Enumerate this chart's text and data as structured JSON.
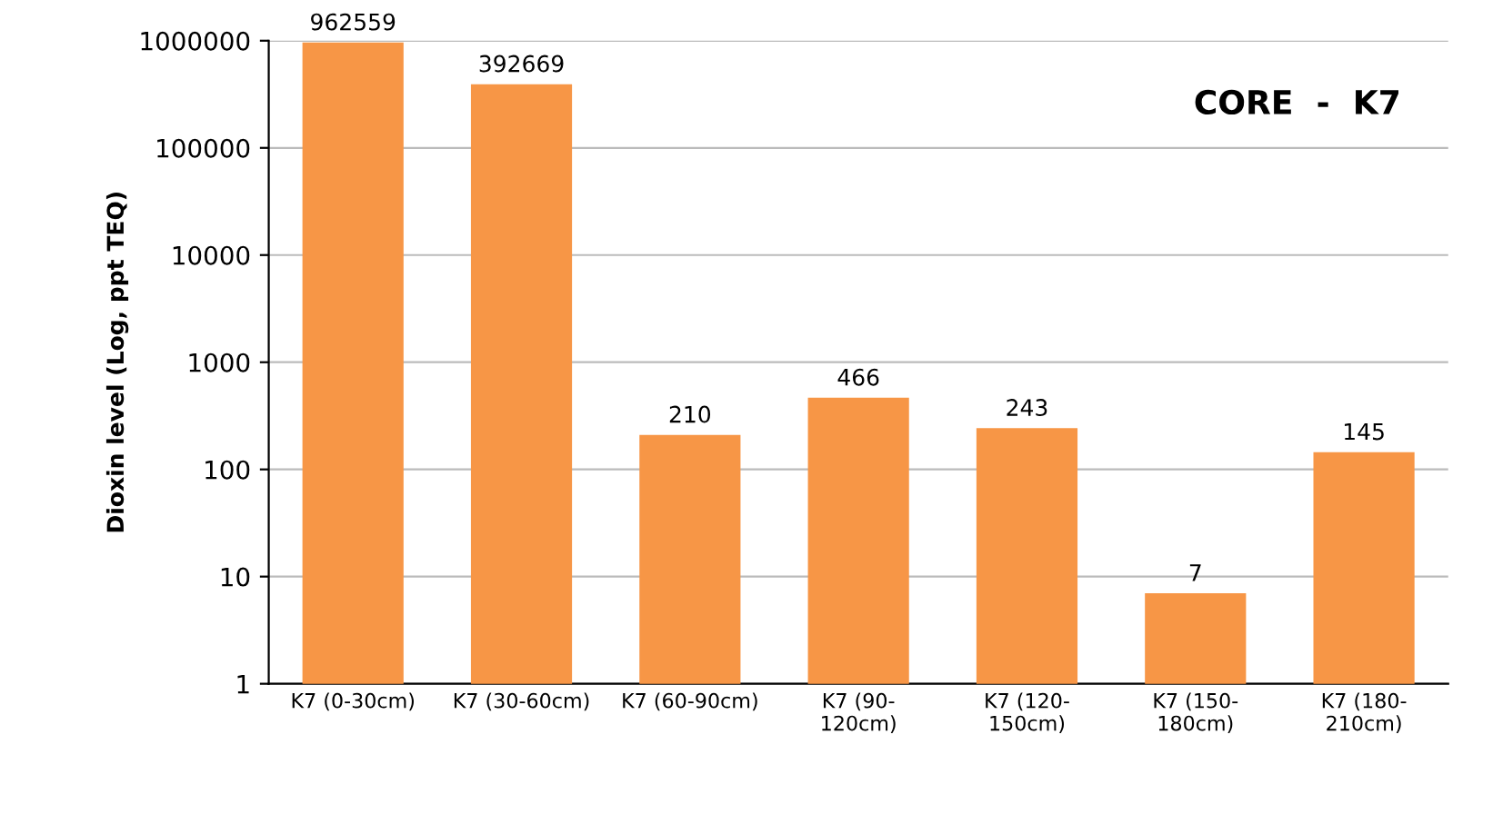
{
  "chart_data": {
    "type": "bar",
    "title": "CORE  -  K7",
    "ylabel": "Dioxin level (Log, ppt TEQ)",
    "categories": [
      "K7 (0-30cm)",
      "K7 (30-60cm)",
      "K7 (60-90cm)",
      "K7 (90-\n120cm)",
      "K7 (120-\n150cm)",
      "K7 (150-\n180cm)",
      "K7 (180-\n210cm)"
    ],
    "values": [
      962559,
      392669,
      210,
      466,
      243,
      7,
      145
    ],
    "color": "#f79646",
    "log": true,
    "ylim": [
      1,
      1000000
    ],
    "yticks": [
      1,
      10,
      100,
      1000,
      10000,
      100000,
      1000000
    ],
    "grid": "y",
    "data_labels": true
  }
}
